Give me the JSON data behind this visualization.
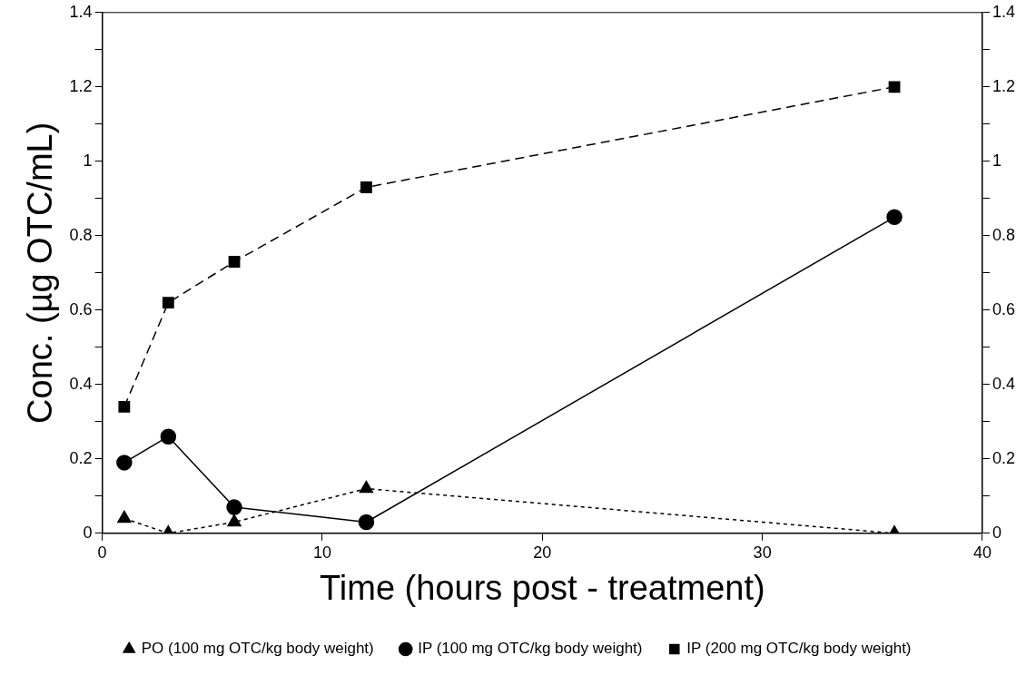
{
  "chart_data": {
    "type": "line",
    "xlabel": "Time (hours post - treatment)",
    "ylabel": "Conc. (µg OTC/mL)",
    "xlim": [
      0,
      40
    ],
    "xticks": [
      0,
      10,
      20,
      30,
      40
    ],
    "ylim": [
      0,
      1.4
    ],
    "yticks": [
      0,
      {
        "value": 0.1,
        "label": null
      },
      0.2,
      {
        "value": 0.3,
        "label": null
      },
      0.4,
      {
        "value": 0.5,
        "label": null
      },
      0.6,
      {
        "value": 0.7,
        "label": null
      },
      0.8,
      {
        "value": 0.9,
        "label": null
      },
      1,
      {
        "value": 1.1,
        "label": null
      },
      1.2,
      {
        "value": 1.3,
        "label": null
      },
      1.4
    ],
    "y2lim": [
      0,
      1.4
    ],
    "y2ticks": [
      0,
      {
        "value": 0.1,
        "label": null
      },
      0.2,
      {
        "value": 0.3,
        "label": null
      },
      0.4,
      {
        "value": 0.5,
        "label": null
      },
      0.6,
      {
        "value": 0.7,
        "label": null
      },
      0.8,
      {
        "value": 0.9,
        "label": null
      },
      1,
      {
        "value": 1.1,
        "label": null
      },
      1.2,
      {
        "value": 1.3,
        "label": null
      },
      1.4
    ],
    "grid": false,
    "legend": "bottom",
    "series": [
      {
        "name": "PO (100 mg OTC/kg body weight)",
        "color": "#000000",
        "marker": "triangle",
        "line_style": "dotted",
        "x": [
          1,
          3,
          6,
          12,
          36
        ],
        "values": [
          0.04,
          0.0,
          0.03,
          0.12,
          0.0
        ]
      },
      {
        "name": "IP (100 mg OTC/kg body weight)",
        "color": "#000000",
        "marker": "circle",
        "line_style": "solid",
        "x": [
          1,
          3,
          6,
          12,
          36
        ],
        "values": [
          0.19,
          0.26,
          0.07,
          0.03,
          0.85
        ]
      },
      {
        "name": "IP (200 mg OTC/kg body weight)",
        "color": "#000000",
        "marker": "square",
        "line_style": "dashed",
        "x": [
          1,
          3,
          6,
          12,
          36
        ],
        "values": [
          0.34,
          0.62,
          0.73,
          0.93,
          1.2
        ]
      }
    ]
  }
}
